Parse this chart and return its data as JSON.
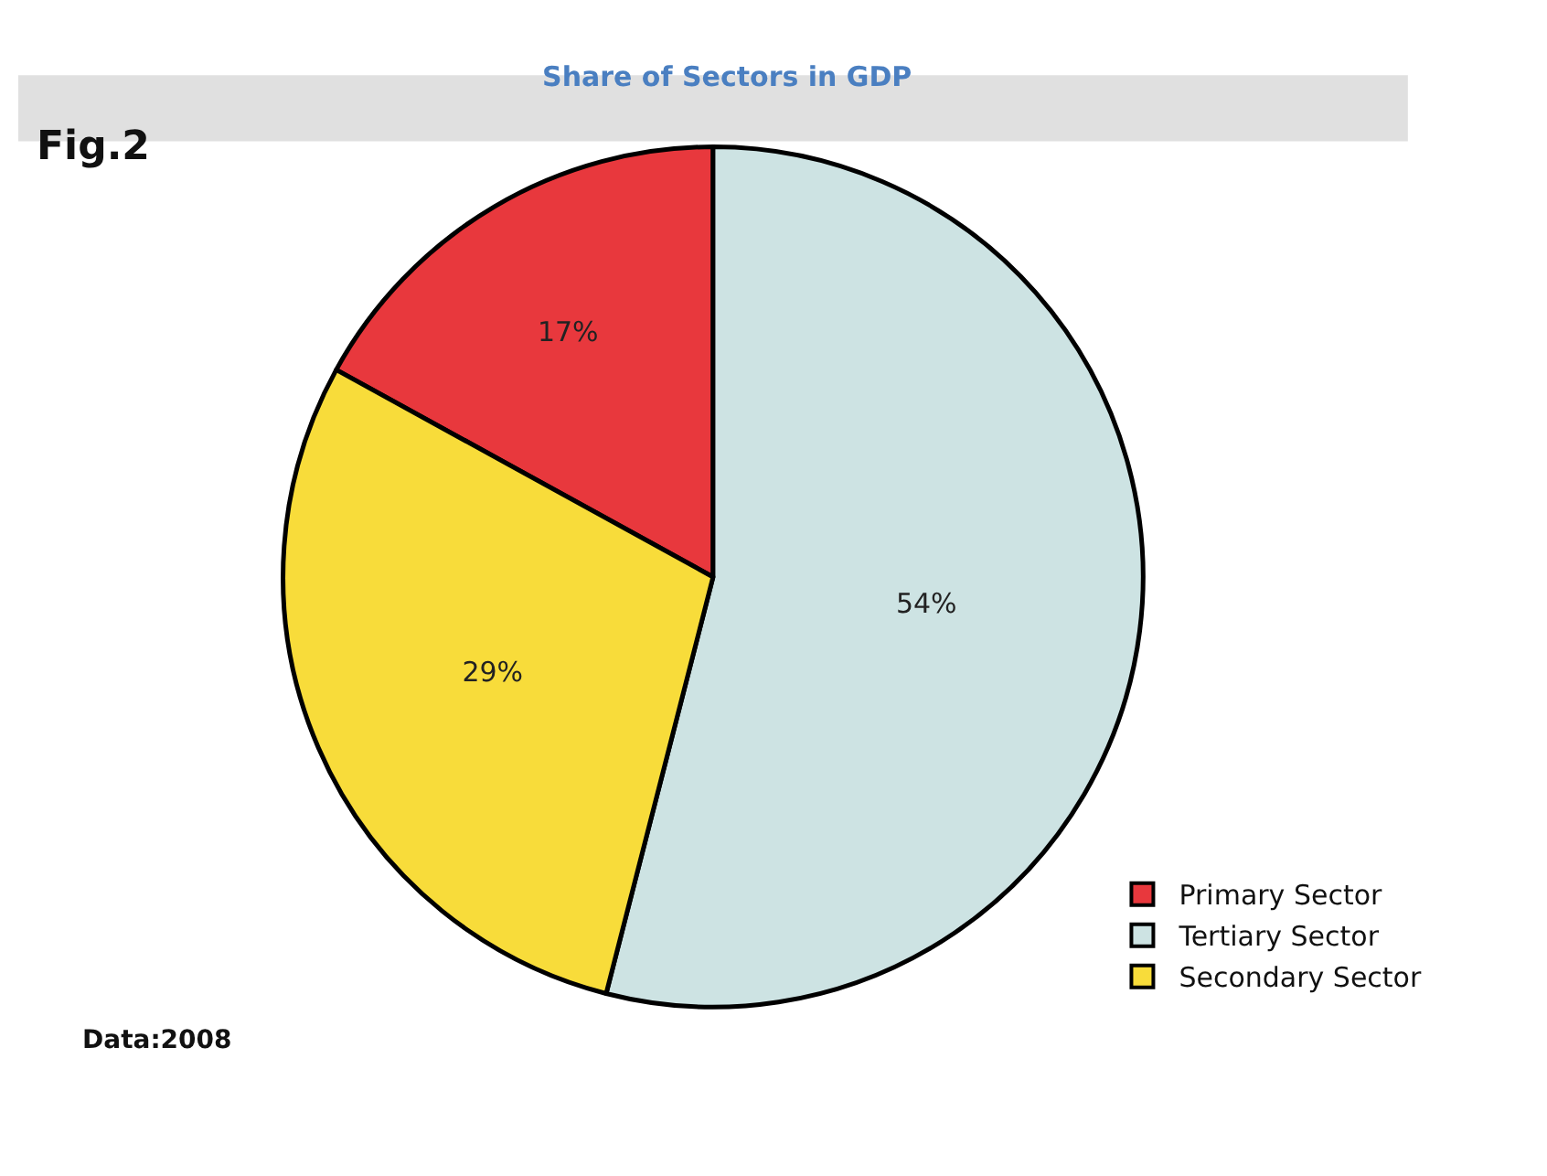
{
  "chart_data": {
    "type": "pie",
    "title": "Share of Sectors in GDP",
    "categories": [
      "Primary Sector",
      "Tertiary Sector",
      "Secondary Sector"
    ],
    "values": [
      17,
      54,
      29
    ],
    "colors": [
      "#e8383d",
      "#cde3e3",
      "#f8dc3a"
    ],
    "value_labels": [
      "17%",
      "54%",
      "29%"
    ],
    "legend": "bottom right",
    "annotations": [
      "Fig.2",
      "Data:2008"
    ]
  }
}
